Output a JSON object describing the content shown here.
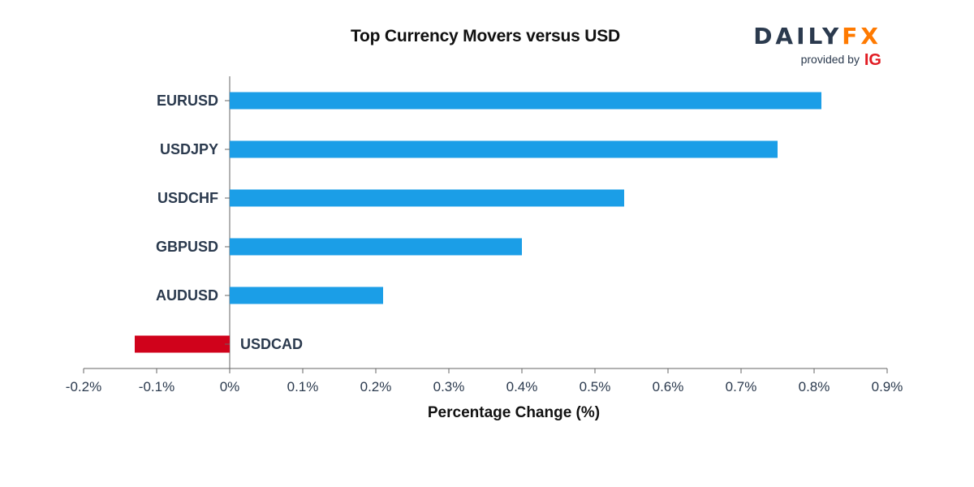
{
  "title": "Top Currency Movers versus USD",
  "brand": {
    "name_part1": "DAILY",
    "name_part2": "FX",
    "provided_by": "provided by",
    "provider": "IG"
  },
  "colors": {
    "positive": "#1b9ee7",
    "negative": "#d0021b",
    "axis": "#666666",
    "text": "#2b3a4e"
  },
  "chart_data": {
    "type": "bar",
    "orientation": "horizontal",
    "categories": [
      "EURUSD",
      "USDJPY",
      "USDCHF",
      "GBPUSD",
      "AUDUSD",
      "USDCAD"
    ],
    "values": [
      0.81,
      0.75,
      0.54,
      0.4,
      0.21,
      -0.13
    ],
    "xlabel": "Percentage Change (%)",
    "xlim": [
      -0.2,
      0.9
    ],
    "xticks": [
      -0.2,
      -0.1,
      0,
      0.1,
      0.2,
      0.3,
      0.4,
      0.5,
      0.6,
      0.7,
      0.8,
      0.9
    ],
    "xtick_labels": [
      "-0.2%",
      "-0.1%",
      "0%",
      "0.1%",
      "0.2%",
      "0.3%",
      "0.4%",
      "0.5%",
      "0.6%",
      "0.7%",
      "0.8%",
      "0.9%"
    ],
    "grid": false,
    "legend": "none"
  }
}
